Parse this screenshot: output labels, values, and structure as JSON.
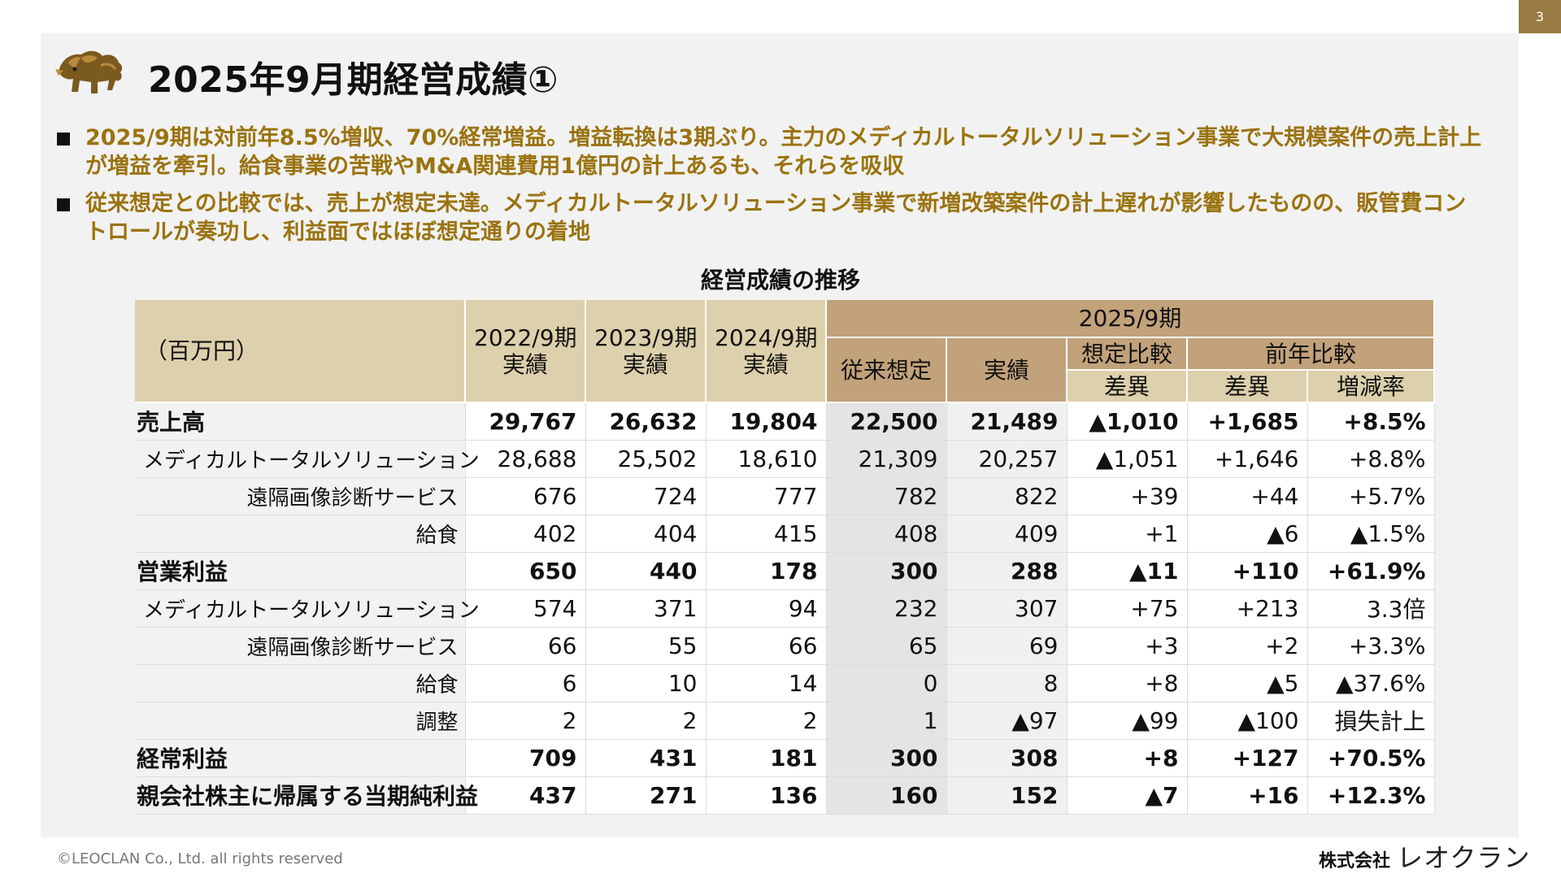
{
  "page_number": "3",
  "title": "2025年9月期経営成績①",
  "bullets": [
    "2025/9期は対前年8.5%増収、70%経常増益。増益転換は3期ぶり。主力のメディカルトータルソリューション事業で大規模案件の売上計上が増益を牽引。給食事業の苦戦やM&A関連費用1億円の計上あるも、それらを吸収",
    "従来想定との比較では、売上が想定未達。メディカルトータルソリューション事業で新増改築案件の計上遅れが影響したものの、販管費コントロールが奏功し、利益面ではほぼ想定通りの着地"
  ],
  "table": {
    "title": "経営成績の推移",
    "header": {
      "unit": "（百万円）",
      "fy2022": "2022/9期",
      "fy2023": "2023/9期",
      "fy2024": "2024/9期",
      "actual": "実績",
      "fy2025": "2025/9期",
      "forecast": "従来想定",
      "actual2025": "実績",
      "vs_forecast": "想定比較",
      "vs_prior": "前年比較",
      "diff": "差異",
      "diff2": "差異",
      "rate": "増減率"
    },
    "rows": [
      {
        "label": "売上高",
        "bold": true,
        "values": [
          "29,767",
          "26,632",
          "19,804",
          "22,500",
          "21,489",
          "▲1,010",
          "+1,685",
          "+8.5%"
        ]
      },
      {
        "label": "メディカルトータルソリューション",
        "bold": false,
        "values": [
          "28,688",
          "25,502",
          "18,610",
          "21,309",
          "20,257",
          "▲1,051",
          "+1,646",
          "+8.8%"
        ]
      },
      {
        "label": "遠隔画像診断サービス",
        "bold": false,
        "values": [
          "676",
          "724",
          "777",
          "782",
          "822",
          "+39",
          "+44",
          "+5.7%"
        ]
      },
      {
        "label": "給食",
        "bold": false,
        "values": [
          "402",
          "404",
          "415",
          "408",
          "409",
          "+1",
          "▲6",
          "▲1.5%"
        ]
      },
      {
        "label": "営業利益",
        "bold": true,
        "values": [
          "650",
          "440",
          "178",
          "300",
          "288",
          "▲11",
          "+110",
          "+61.9%"
        ]
      },
      {
        "label": "メディカルトータルソリューション",
        "bold": false,
        "values": [
          "574",
          "371",
          "94",
          "232",
          "307",
          "+75",
          "+213",
          "3.3倍"
        ]
      },
      {
        "label": "遠隔画像診断サービス",
        "bold": false,
        "values": [
          "66",
          "55",
          "66",
          "65",
          "69",
          "+3",
          "+2",
          "+3.3%"
        ]
      },
      {
        "label": "給食",
        "bold": false,
        "values": [
          "6",
          "10",
          "14",
          "0",
          "8",
          "+8",
          "▲5",
          "▲37.6%"
        ]
      },
      {
        "label": "調整",
        "bold": false,
        "values": [
          "2",
          "2",
          "2",
          "1",
          "▲97",
          "▲99",
          "▲100",
          "損失計上"
        ]
      },
      {
        "label": "経常利益",
        "bold": true,
        "values": [
          "709",
          "431",
          "181",
          "300",
          "308",
          "+8",
          "+127",
          "+70.5%"
        ]
      },
      {
        "label": "親会社株主に帰属する当期純利益",
        "bold": true,
        "values": [
          "437",
          "271",
          "136",
          "160",
          "152",
          "▲7",
          "+16",
          "+12.3%"
        ]
      }
    ]
  },
  "footer": {
    "copyright": "©LEOCLAN Co., Ltd. all rights reserved",
    "company_prefix": "株式会社",
    "company_brand": "レオクラン"
  },
  "colors": {
    "accent_gold": "#9a7310",
    "header_light": "#ddd0ac",
    "header_dark": "#c2a27a",
    "page_badge": "#9a7b45"
  },
  "icons": {
    "logo": "lion-logo-icon"
  }
}
